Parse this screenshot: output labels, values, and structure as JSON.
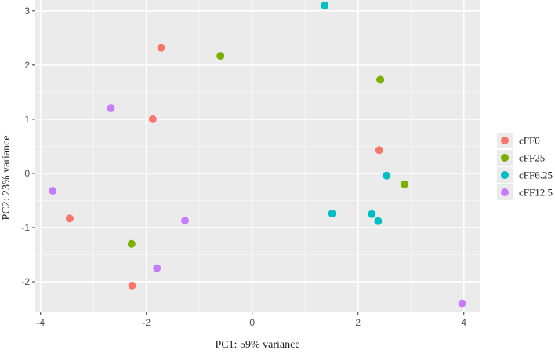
{
  "chart_data": {
    "type": "scatter",
    "xlabel": "PC1: 59% variance",
    "ylabel": "PC2: 23% variance",
    "xlim": [
      -4.1,
      4.3
    ],
    "ylim": [
      -2.55,
      3.2
    ],
    "xticks": [
      -4,
      -2,
      0,
      2,
      4
    ],
    "yticks": [
      -2,
      -1,
      0,
      1,
      2,
      3
    ],
    "xtick_labels": [
      "-4",
      "-2",
      "0",
      "2",
      "4"
    ],
    "ytick_labels": [
      "-2",
      "-1",
      "0",
      "1",
      "2",
      "3"
    ],
    "grid": true,
    "legend_position": "right",
    "panel_background": "#ebebeb",
    "series": [
      {
        "name": "cFF0",
        "color": "#F8766D",
        "points": [
          {
            "x": -1.72,
            "y": 2.32
          },
          {
            "x": -1.88,
            "y": 1.0
          },
          {
            "x": -3.45,
            "y": -0.83
          },
          {
            "x": -2.27,
            "y": -2.07
          },
          {
            "x": 2.4,
            "y": 0.43
          }
        ]
      },
      {
        "name": "cFF25",
        "color": "#7CAE00",
        "points": [
          {
            "x": -0.6,
            "y": 2.17
          },
          {
            "x": 2.42,
            "y": 1.73
          },
          {
            "x": 2.88,
            "y": -0.2
          },
          {
            "x": -2.28,
            "y": -1.3
          }
        ]
      },
      {
        "name": "cFF6.25",
        "color": "#00BFC4",
        "points": [
          {
            "x": 1.37,
            "y": 3.1
          },
          {
            "x": 2.54,
            "y": -0.04
          },
          {
            "x": 1.51,
            "y": -0.74
          },
          {
            "x": 2.26,
            "y": -0.75
          },
          {
            "x": 2.38,
            "y": -0.88
          }
        ]
      },
      {
        "name": "cFF12.5",
        "color": "#C77CFF",
        "points": [
          {
            "x": -2.67,
            "y": 1.2
          },
          {
            "x": -3.77,
            "y": -0.32
          },
          {
            "x": -1.27,
            "y": -0.87
          },
          {
            "x": -1.8,
            "y": -1.75
          },
          {
            "x": 3.97,
            "y": -2.4
          }
        ]
      }
    ]
  }
}
